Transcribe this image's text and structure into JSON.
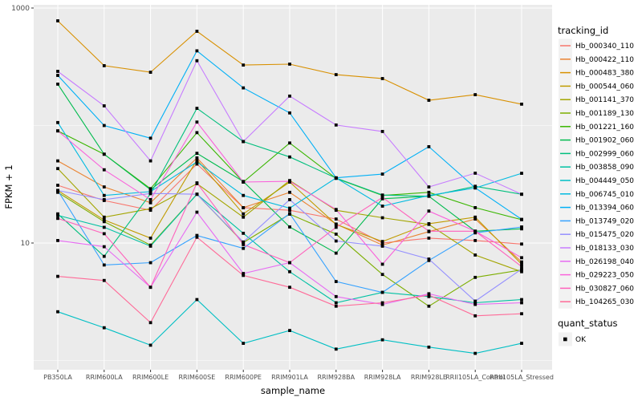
{
  "figure": {
    "background": "#FFFFFF",
    "panel_background": "#EBEBEB",
    "grid_color": "#FFFFFF",
    "legend_key_background": "#F2F2F2",
    "axis_text_color": "#4D4D4D",
    "point_color": "#000000"
  },
  "legend": {
    "color_title": "tracking_id",
    "shape_title": "quant_status",
    "shape_items": [
      {
        "label": "OK",
        "marker": "black-square"
      }
    ]
  },
  "chart_data": {
    "type": "line",
    "title": "",
    "xlabel": "sample_name",
    "ylabel": "FPKM + 1",
    "y_scale": "log10",
    "ylim": [
      0.8,
      1100
    ],
    "grid": true,
    "legend_position": "right",
    "y_ticks": [
      {
        "label": "1000",
        "value": 1000
      },
      {
        "label": "10",
        "value": 10
      }
    ],
    "y_minor_gridlines": [
      100,
      1
    ],
    "categories": [
      "PB350LA",
      "RRIM600LA",
      "RRIM600LE",
      "RRIM600SE",
      "RRIM600PE",
      "RRIM901LA",
      "RRIM928BA",
      "RRIM928LA",
      "RRIM928LE",
      "RRII105LA_Control",
      "RRII105LA_Stressed"
    ],
    "series": [
      {
        "name": "Hb_000340_110",
        "color": "#F8766D",
        "values": [
          31,
          23,
          19,
          47,
          20,
          19,
          16,
          10,
          11,
          10.5,
          9.8
        ]
      },
      {
        "name": "Hb_000422_110",
        "color": "#EA8331",
        "values": [
          50,
          30,
          22,
          53,
          20,
          27,
          14.5,
          9.6,
          12.5,
          16,
          6.9
        ]
      },
      {
        "name": "Hb_000483_380",
        "color": "#D89000",
        "values": [
          778,
          323,
          284,
          634,
          327,
          333,
          271,
          251,
          164,
          183,
          152
        ]
      },
      {
        "name": "Hb_000544_060",
        "color": "#C09B00",
        "values": [
          28,
          15.7,
          11,
          51,
          17.7,
          33,
          14.4,
          10.3,
          14.6,
          16.6,
          6.6
        ]
      },
      {
        "name": "Hb_001141_370",
        "color": "#A3A500",
        "values": [
          43,
          16.6,
          19.6,
          32,
          16.6,
          34,
          19,
          16.4,
          14.4,
          7.9,
          5.7
        ]
      },
      {
        "name": "Hb_001189_130",
        "color": "#7CAE00",
        "values": [
          27,
          15.2,
          9.6,
          26,
          10.1,
          17.6,
          11.9,
          5.4,
          2.9,
          5.1,
          5.9
        ]
      },
      {
        "name": "Hb_001221_160",
        "color": "#39B600",
        "values": [
          90,
          57,
          29,
          87,
          33,
          71,
          35.5,
          25.4,
          27,
          20,
          15.8
        ]
      },
      {
        "name": "Hb_001902_060",
        "color": "#00BB4E",
        "values": [
          225,
          57,
          28.4,
          58,
          33.4,
          13.7,
          8.2,
          23.8,
          25,
          12.6,
          13.2
        ]
      },
      {
        "name": "Hb_002999_060",
        "color": "#00BF7D",
        "values": [
          17.7,
          7.7,
          26.3,
          140,
          73,
          54,
          35.7,
          25.6,
          25,
          30.4,
          26
        ]
      },
      {
        "name": "Hb_003858_090",
        "color": "#00C1A3",
        "values": [
          17.2,
          13.6,
          9.4,
          26,
          12.1,
          5.7,
          3.1,
          3.8,
          3.5,
          3.1,
          3.3
        ]
      },
      {
        "name": "Hb_004449_050",
        "color": "#00BFC4",
        "values": [
          2.6,
          1.9,
          1.35,
          3.3,
          1.4,
          1.8,
          1.25,
          1.5,
          1.3,
          1.15,
          1.4
        ]
      },
      {
        "name": "Hb_006745_010",
        "color": "#00BAE0",
        "values": [
          106,
          25.4,
          27.4,
          49,
          25.4,
          19.8,
          35.8,
          20.6,
          25.4,
          29.4,
          39.2
        ]
      },
      {
        "name": "Hb_013394_060",
        "color": "#00B0F6",
        "values": [
          267,
          100,
          78,
          432,
          209,
          128,
          35.9,
          38.6,
          66,
          29.5,
          15.9
        ]
      },
      {
        "name": "Hb_013749_020",
        "color": "#35A2FF",
        "values": [
          28,
          6.5,
          6.8,
          11.6,
          9.0,
          17.8,
          4.7,
          3.8,
          7.1,
          12.2,
          13.7
        ]
      },
      {
        "name": "Hb_015475_020",
        "color": "#9590FF",
        "values": [
          28,
          23.4,
          26.4,
          26,
          10.2,
          23.4,
          10.4,
          9.4,
          7.3,
          3.2,
          6.0
        ]
      },
      {
        "name": "Hb_018133_030",
        "color": "#C77CFF",
        "values": [
          289,
          147,
          50,
          356,
          73,
          178,
          101,
          89,
          30,
          39.3,
          26
        ]
      },
      {
        "name": "Hb_026198_040",
        "color": "#E76BF3",
        "values": [
          10.5,
          9.3,
          4.2,
          18.3,
          5.5,
          6.8,
          3.5,
          3.0,
          3.7,
          3.0,
          3.1
        ]
      },
      {
        "name": "Hb_029223_050",
        "color": "#FA62DB",
        "values": [
          90,
          42,
          23.4,
          107,
          33,
          33.5,
          19.3,
          6.6,
          18.7,
          12.6,
          7.5
        ]
      },
      {
        "name": "Hb_030827_060",
        "color": "#FF62BC",
        "values": [
          16.2,
          12.0,
          4.2,
          32.5,
          9.7,
          6.8,
          13.6,
          24.4,
          12.6,
          12.6,
          6.3
        ]
      },
      {
        "name": "Hb_104265_030",
        "color": "#FF6A98",
        "values": [
          5.2,
          4.8,
          2.1,
          11.2,
          5.3,
          4.2,
          2.9,
          3.1,
          3.6,
          2.4,
          2.5
        ]
      }
    ]
  }
}
